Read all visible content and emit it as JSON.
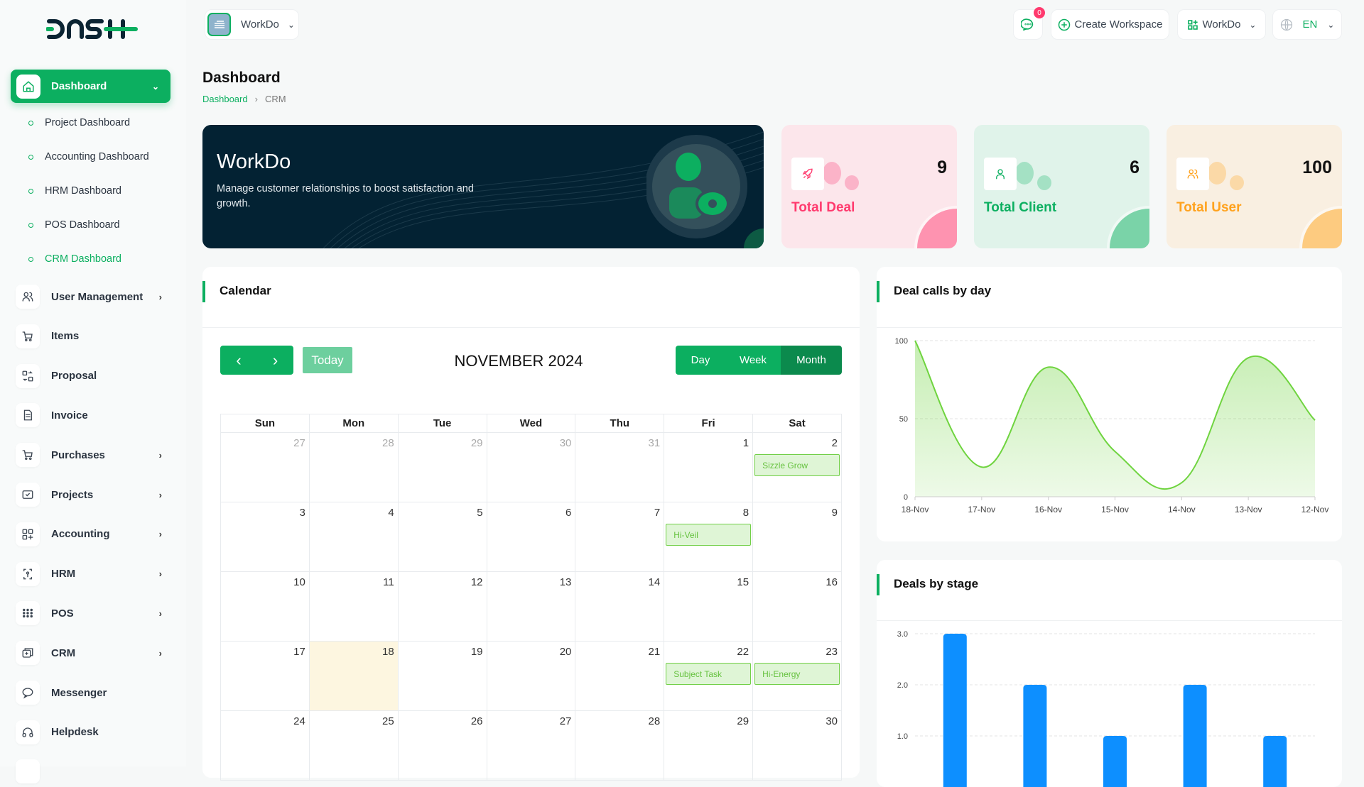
{
  "brand": {
    "logo_text": "DASH",
    "accent": "#0caf60"
  },
  "topbar": {
    "workspace": "WorkDo",
    "notifications_count": "0",
    "create_workspace": "Create Workspace",
    "workspace_menu": "WorkDo",
    "language": "EN"
  },
  "sidebar": {
    "active": {
      "label": "Dashboard",
      "icon": "home-icon"
    },
    "submenu": [
      {
        "label": "Project Dashboard"
      },
      {
        "label": "Accounting Dashboard"
      },
      {
        "label": "HRM Dashboard"
      },
      {
        "label": "POS Dashboard"
      },
      {
        "label": "CRM Dashboard",
        "current": true
      }
    ],
    "items": [
      {
        "label": "User Management",
        "icon": "users-icon",
        "has_children": true
      },
      {
        "label": "Items",
        "icon": "cart-icon",
        "has_children": false
      },
      {
        "label": "Proposal",
        "icon": "proposal-icon",
        "has_children": false
      },
      {
        "label": "Invoice",
        "icon": "invoice-icon",
        "has_children": false
      },
      {
        "label": "Purchases",
        "icon": "cart-icon",
        "has_children": true
      },
      {
        "label": "Projects",
        "icon": "checkbox-icon",
        "has_children": true
      },
      {
        "label": "Accounting",
        "icon": "grid-plus-icon",
        "has_children": true
      },
      {
        "label": "HRM",
        "icon": "hrm-icon",
        "has_children": true
      },
      {
        "label": "POS",
        "icon": "dots-grid-icon",
        "has_children": true
      },
      {
        "label": "CRM",
        "icon": "crm-icon",
        "has_children": true
      },
      {
        "label": "Messenger",
        "icon": "chat-icon",
        "has_children": false
      },
      {
        "label": "Helpdesk",
        "icon": "headset-icon",
        "has_children": false
      }
    ]
  },
  "page": {
    "title": "Dashboard",
    "breadcrumb": [
      "Dashboard",
      "CRM"
    ]
  },
  "banner": {
    "title": "WorkDo",
    "text": "Manage customer relationships to boost satisfaction and growth."
  },
  "stats": [
    {
      "label": "Total Deal",
      "value": "9",
      "icon": "rocket-icon",
      "color": "#ff3a6e",
      "bg": "#fce6eb",
      "blob": "#fbb3c8",
      "corner": "#fe93b0"
    },
    {
      "label": "Total Client",
      "value": "6",
      "icon": "user-icon",
      "color": "#0caf60",
      "bg": "#e0f3ea",
      "blob": "#a4e1c4",
      "corner": "#7ad3a8"
    },
    {
      "label": "Total User",
      "value": "100",
      "icon": "users-icon",
      "color": "#ffa21d",
      "bg": "#f9efe1",
      "blob": "#fbd9a7",
      "corner": "#fdcb80"
    }
  ],
  "calendar": {
    "title": "Calendar",
    "month_label": "NOVEMBER 2024",
    "today_label": "Today",
    "views": [
      "Day",
      "Week",
      "Month"
    ],
    "active_view": "Month",
    "weekdays": [
      "Sun",
      "Mon",
      "Tue",
      "Wed",
      "Thu",
      "Fri",
      "Sat"
    ],
    "weeks": [
      [
        {
          "d": "27",
          "other": true
        },
        {
          "d": "28",
          "other": true
        },
        {
          "d": "29",
          "other": true
        },
        {
          "d": "30",
          "other": true
        },
        {
          "d": "31",
          "other": true
        },
        {
          "d": "1"
        },
        {
          "d": "2",
          "event": "Sizzle Grow"
        }
      ],
      [
        {
          "d": "3"
        },
        {
          "d": "4"
        },
        {
          "d": "5"
        },
        {
          "d": "6"
        },
        {
          "d": "7"
        },
        {
          "d": "8",
          "event": "Hi-Veil"
        },
        {
          "d": "9"
        }
      ],
      [
        {
          "d": "10"
        },
        {
          "d": "11"
        },
        {
          "d": "12"
        },
        {
          "d": "13"
        },
        {
          "d": "14"
        },
        {
          "d": "15"
        },
        {
          "d": "16"
        }
      ],
      [
        {
          "d": "17"
        },
        {
          "d": "18",
          "today": true
        },
        {
          "d": "19"
        },
        {
          "d": "20"
        },
        {
          "d": "21"
        },
        {
          "d": "22",
          "event": "Subject Task"
        },
        {
          "d": "23",
          "event": "Hi-Energy"
        }
      ],
      [
        {
          "d": "24"
        },
        {
          "d": "25"
        },
        {
          "d": "26"
        },
        {
          "d": "27"
        },
        {
          "d": "28"
        },
        {
          "d": "29"
        },
        {
          "d": "30"
        }
      ]
    ]
  },
  "chart_data": [
    {
      "type": "area",
      "title": "Deal calls by day",
      "categories": [
        "18-Nov",
        "17-Nov",
        "16-Nov",
        "15-Nov",
        "14-Nov",
        "13-Nov",
        "12-Nov"
      ],
      "values": [
        100,
        19,
        83,
        29,
        9,
        89,
        49
      ],
      "ylim": [
        0,
        100
      ],
      "yticks": [
        "0",
        "50",
        "100"
      ],
      "grid": true,
      "color": "#6fd43f"
    },
    {
      "type": "bar",
      "title": "Deals by stage",
      "values": [
        3,
        2,
        1,
        2,
        1
      ],
      "ylim": [
        0,
        3
      ],
      "yticks": [
        "1.0",
        "2.0",
        "3.0"
      ],
      "grid": true,
      "color": "#0d8fff"
    }
  ]
}
